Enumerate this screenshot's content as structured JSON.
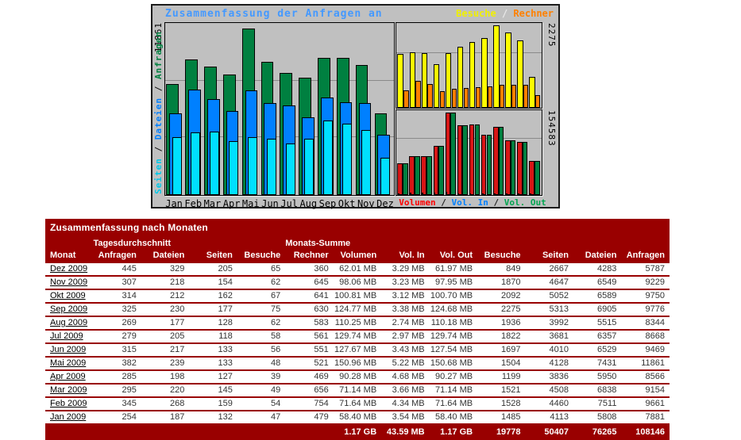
{
  "chart": {
    "title": "Zusammenfassung der Anfragen an",
    "left_axis_max": "11861",
    "right_axis_top_max": "2275",
    "right_axis_bottom_max": "154583",
    "left_series_label": [
      {
        "text": "Seiten",
        "color": "#00c8e8"
      },
      {
        "text": "Dateien",
        "color": "#0080ff"
      },
      {
        "text": "Anfragen",
        "color": "#008040"
      }
    ],
    "legend_top_right": [
      {
        "label": "Besuche",
        "color": "#f0f000"
      },
      {
        "label": "Rechner",
        "color": "#ff8000"
      }
    ],
    "legend_bottom_right": [
      {
        "label": "Volumen",
        "color": "#ff0000"
      },
      {
        "label": "Vol. In",
        "color": "#0080ff"
      },
      {
        "label": "Vol. Out",
        "color": "#00a550"
      }
    ],
    "months": [
      "Jan",
      "Feb",
      "Mar",
      "Apr",
      "Mai",
      "Jun",
      "Jul",
      "Aug",
      "Sep",
      "Okt",
      "Nov",
      "Dez"
    ]
  },
  "chart_data": [
    {
      "type": "bar",
      "title": "Seiten / Dateien / Anfragen",
      "categories": [
        "Jan",
        "Feb",
        "Mar",
        "Apr",
        "Mai",
        "Jun",
        "Jul",
        "Aug",
        "Sep",
        "Okt",
        "Nov",
        "Dez"
      ],
      "series": [
        {
          "name": "Anfragen",
          "color": "#008040",
          "values": [
            7881,
            9661,
            9154,
            8566,
            11861,
            9469,
            8668,
            8344,
            9776,
            9750,
            9229,
            5787
          ]
        },
        {
          "name": "Dateien",
          "color": "#0080ff",
          "values": [
            5808,
            7511,
            6838,
            5950,
            7431,
            6529,
            6357,
            5515,
            6905,
            6589,
            6549,
            4283
          ]
        },
        {
          "name": "Seiten",
          "color": "#00e0ff",
          "values": [
            4113,
            4460,
            4508,
            3836,
            4128,
            4010,
            3681,
            3992,
            5313,
            5052,
            4647,
            2667
          ]
        }
      ],
      "ylim": [
        0,
        11861
      ],
      "grid_lines_pct": [
        33,
        66
      ],
      "legend_position": "left-rotated"
    },
    {
      "type": "bar",
      "title": "Besuche / Rechner",
      "categories": [
        "Jan",
        "Feb",
        "Mar",
        "Apr",
        "Mai",
        "Jun",
        "Jul",
        "Aug",
        "Sep",
        "Okt",
        "Nov",
        "Dez"
      ],
      "series": [
        {
          "name": "Besuche",
          "color": "#ffff00",
          "values": [
            1485,
            1528,
            1521,
            1199,
            1504,
            1697,
            1822,
            1936,
            2275,
            2092,
            1870,
            849
          ]
        },
        {
          "name": "Rechner",
          "color": "#ff8000",
          "values": [
            479,
            754,
            656,
            469,
            521,
            551,
            561,
            583,
            630,
            641,
            645,
            360
          ]
        }
      ],
      "ylim": [
        0,
        2275
      ],
      "grid_lines_pct": [
        35
      ],
      "legend_position": "top-right"
    },
    {
      "type": "bar",
      "title": "Volumen / Vol. In / Vol. Out (MB)",
      "categories": [
        "Jan",
        "Feb",
        "Mar",
        "Apr",
        "Mai",
        "Jun",
        "Jul",
        "Aug",
        "Sep",
        "Okt",
        "Nov",
        "Dez"
      ],
      "series": [
        {
          "name": "Volumen",
          "color": "#d81616",
          "values": [
            58.4,
            71.64,
            71.14,
            90.28,
            150.96,
            127.67,
            129.74,
            110.25,
            124.77,
            100.81,
            98.06,
            62.01
          ]
        },
        {
          "name": "Vol. In",
          "color": "#0080ff",
          "values": [
            3.54,
            4.34,
            3.66,
            4.68,
            5.22,
            3.43,
            2.97,
            2.74,
            3.38,
            3.12,
            3.23,
            3.29
          ]
        },
        {
          "name": "Vol. Out",
          "color": "#008040",
          "values": [
            58.4,
            71.64,
            71.14,
            90.27,
            150.68,
            127.54,
            129.74,
            110.18,
            124.68,
            100.7,
            97.95,
            61.97
          ]
        }
      ],
      "ylim": [
        0,
        150.96
      ],
      "grid_lines_pct": [
        33
      ],
      "legend_position": "bottom-right"
    }
  ],
  "table": {
    "title": "Zusammenfassung nach Monaten",
    "group_headers": {
      "tagesdurchschnitt": "Tagesdurchschnitt",
      "monats_summe": "Monats-Summe"
    },
    "columns": [
      "Monat",
      "Anfragen",
      "Dateien",
      "Seiten",
      "Besuche",
      "Rechner",
      "Volumen",
      "Vol. In",
      "Vol. Out",
      "Besuche",
      "Seiten",
      "Dateien",
      "Anfragen"
    ],
    "rows": [
      [
        "Dez 2009",
        "445",
        "329",
        "205",
        "65",
        "360",
        "62.01 MB",
        "3.29 MB",
        "61.97 MB",
        "849",
        "2667",
        "4283",
        "5787"
      ],
      [
        "Nov 2009",
        "307",
        "218",
        "154",
        "62",
        "645",
        "98.06 MB",
        "3.23 MB",
        "97.95 MB",
        "1870",
        "4647",
        "6549",
        "9229"
      ],
      [
        "Okt 2009",
        "314",
        "212",
        "162",
        "67",
        "641",
        "100.81 MB",
        "3.12 MB",
        "100.70 MB",
        "2092",
        "5052",
        "6589",
        "9750"
      ],
      [
        "Sep 2009",
        "325",
        "230",
        "177",
        "75",
        "630",
        "124.77 MB",
        "3.38 MB",
        "124.68 MB",
        "2275",
        "5313",
        "6905",
        "9776"
      ],
      [
        "Aug 2009",
        "269",
        "177",
        "128",
        "62",
        "583",
        "110.25 MB",
        "2.74 MB",
        "110.18 MB",
        "1936",
        "3992",
        "5515",
        "8344"
      ],
      [
        "Jul 2009",
        "279",
        "205",
        "118",
        "58",
        "561",
        "129.74 MB",
        "2.97 MB",
        "129.74 MB",
        "1822",
        "3681",
        "6357",
        "8668"
      ],
      [
        "Jun 2009",
        "315",
        "217",
        "133",
        "56",
        "551",
        "127.67 MB",
        "3.43 MB",
        "127.54 MB",
        "1697",
        "4010",
        "6529",
        "9469"
      ],
      [
        "Mai 2009",
        "382",
        "239",
        "133",
        "48",
        "521",
        "150.96 MB",
        "5.22 MB",
        "150.68 MB",
        "1504",
        "4128",
        "7431",
        "11861"
      ],
      [
        "Apr 2009",
        "285",
        "198",
        "127",
        "39",
        "469",
        "90.28 MB",
        "4.68 MB",
        "90.27 MB",
        "1199",
        "3836",
        "5950",
        "8566"
      ],
      [
        "Mar 2009",
        "295",
        "220",
        "145",
        "49",
        "656",
        "71.14 MB",
        "3.66 MB",
        "71.14 MB",
        "1521",
        "4508",
        "6838",
        "9154"
      ],
      [
        "Feb 2009",
        "345",
        "268",
        "159",
        "54",
        "754",
        "71.64 MB",
        "4.34 MB",
        "71.64 MB",
        "1528",
        "4460",
        "7511",
        "9661"
      ],
      [
        "Jan 2009",
        "254",
        "187",
        "132",
        "47",
        "479",
        "58.40 MB",
        "3.54 MB",
        "58.40 MB",
        "1485",
        "4113",
        "5808",
        "7881"
      ]
    ],
    "totals": [
      "",
      "",
      "",
      "",
      "",
      "",
      "1.17 GB",
      "43.59 MB",
      "1.17 GB",
      "19778",
      "50407",
      "76265",
      "108146"
    ]
  }
}
